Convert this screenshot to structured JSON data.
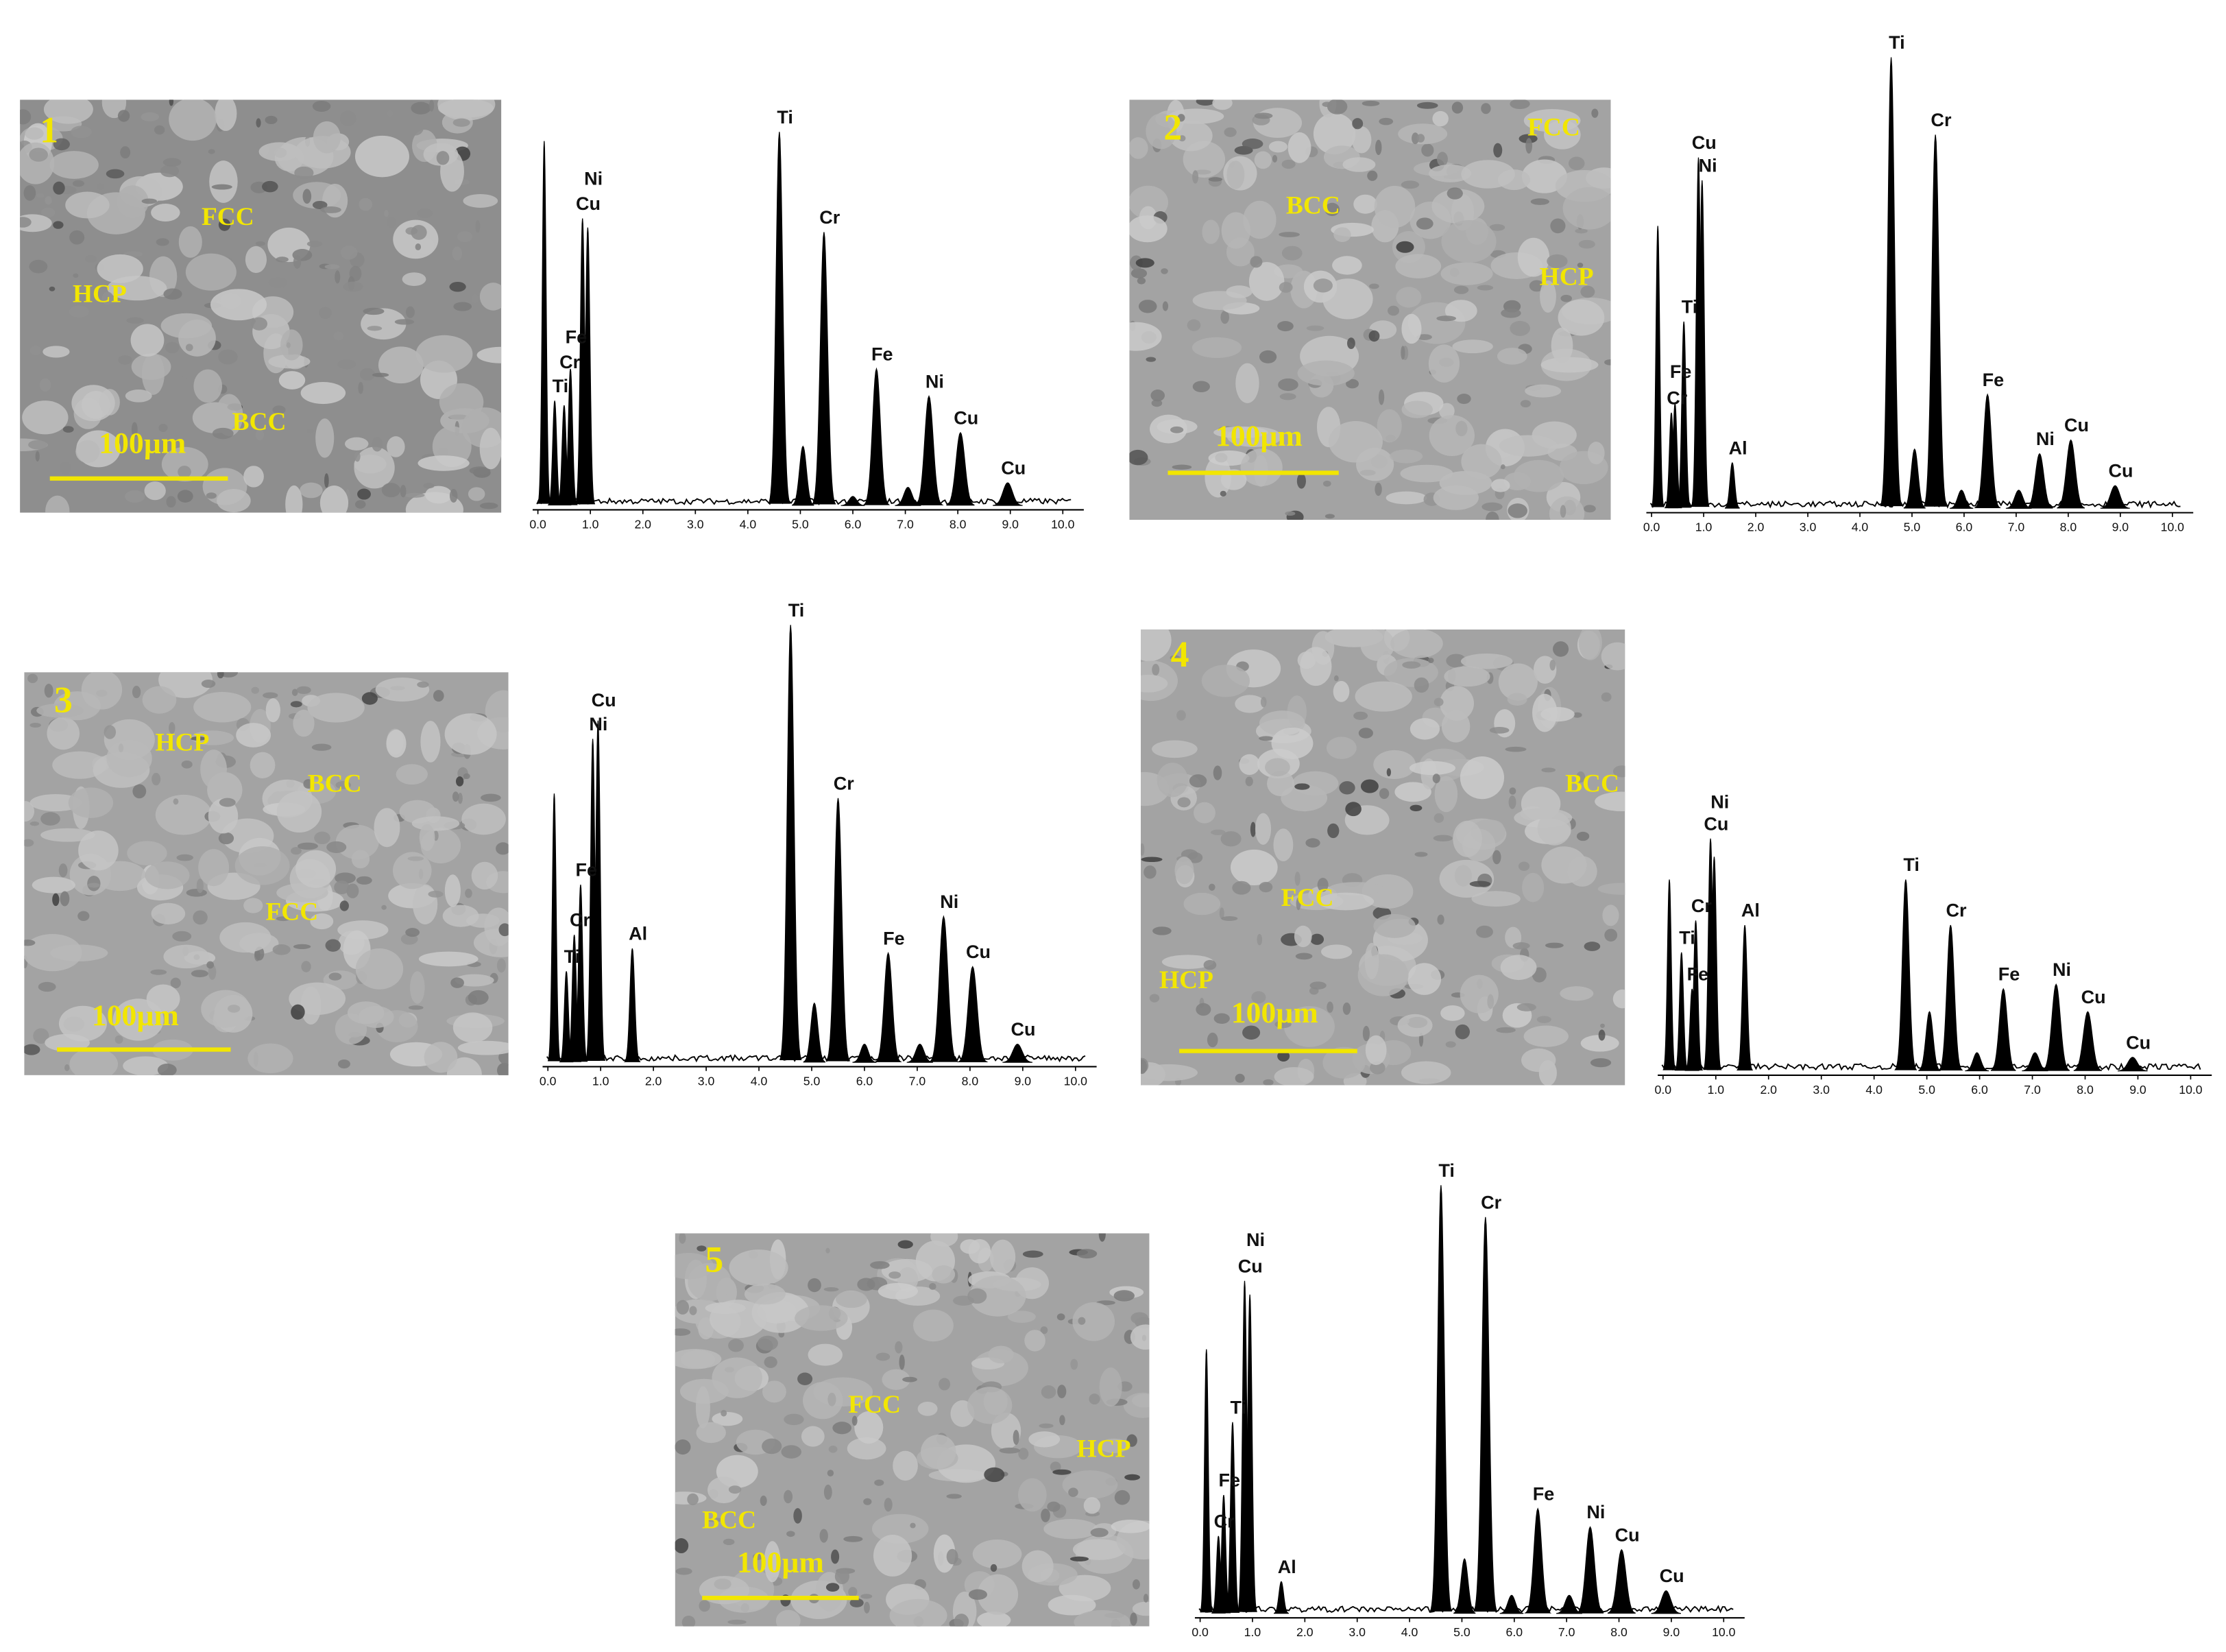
{
  "panels": [
    {
      "number": "1",
      "phases": [
        "FCC",
        "HCP",
        "BCC"
      ],
      "scale_bar": "100µm",
      "spectrum": {
        "type": "spectrum",
        "xlim": [
          -0.1,
          10.4
        ],
        "ylim": [
          0,
          100
        ],
        "xticks": [
          {
            "value": 0,
            "label": "0.0"
          },
          {
            "value": 1,
            "label": "1.0"
          },
          {
            "value": 2,
            "label": "2.0"
          },
          {
            "value": 3,
            "label": "3.0"
          },
          {
            "value": 4,
            "label": "4.0"
          },
          {
            "value": 5,
            "label": "5.0"
          },
          {
            "value": 6,
            "label": "6.0"
          },
          {
            "value": 7,
            "label": "7.0"
          },
          {
            "value": 8,
            "label": "8.0"
          },
          {
            "value": 9,
            "label": "9.0"
          },
          {
            "value": 10,
            "label": "10.0"
          }
        ],
        "peaks": [
          {
            "x": 0.12,
            "height": 80,
            "label": null
          },
          {
            "x": 0.32,
            "height": 23,
            "label": "Ti"
          },
          {
            "x": 0.5,
            "height": 22,
            "label": "Cr"
          },
          {
            "x": 0.62,
            "height": 30,
            "label": "Fe"
          },
          {
            "x": 0.85,
            "height": 63,
            "label": "Cu"
          },
          {
            "x": 0.95,
            "height": 61,
            "label": "Ni"
          },
          {
            "x": 4.6,
            "height": 82,
            "label": "Ti"
          },
          {
            "x": 5.05,
            "height": 13,
            "label": null
          },
          {
            "x": 5.45,
            "height": 60,
            "label": "Cr"
          },
          {
            "x": 6.0,
            "height": 2,
            "label": null
          },
          {
            "x": 6.45,
            "height": 30,
            "label": "Fe"
          },
          {
            "x": 7.05,
            "height": 4,
            "label": null
          },
          {
            "x": 7.45,
            "height": 24,
            "label": "Ni"
          },
          {
            "x": 8.05,
            "height": 16,
            "label": "Cu"
          },
          {
            "x": 8.95,
            "height": 5,
            "label": "Cu"
          }
        ]
      }
    },
    {
      "number": "2",
      "phases": [
        "FCC",
        "BCC",
        "HCP"
      ],
      "scale_bar": "100µm",
      "spectrum": {
        "type": "spectrum",
        "xlim": [
          -0.1,
          10.4
        ],
        "ylim": [
          0,
          100
        ],
        "xticks": [
          {
            "value": 0,
            "label": "0.0"
          },
          {
            "value": 1,
            "label": "1.0"
          },
          {
            "value": 2,
            "label": "2.0"
          },
          {
            "value": 3,
            "label": "3.0"
          },
          {
            "value": 4,
            "label": "4.0"
          },
          {
            "value": 5,
            "label": "5.0"
          },
          {
            "value": 6,
            "label": "6.0"
          },
          {
            "value": 7,
            "label": "7.0"
          },
          {
            "value": 8,
            "label": "8.0"
          },
          {
            "value": 9,
            "label": "9.0"
          },
          {
            "value": 10,
            "label": "10.0"
          }
        ],
        "peaks": [
          {
            "x": 0.12,
            "height": 62,
            "label": null
          },
          {
            "x": 0.38,
            "height": 21,
            "label": "Cr"
          },
          {
            "x": 0.45,
            "height": 23,
            "label": "Fe"
          },
          {
            "x": 0.62,
            "height": 41,
            "label": "Ti"
          },
          {
            "x": 0.9,
            "height": 77,
            "label": "Cu"
          },
          {
            "x": 0.97,
            "height": 72,
            "label": "Ni"
          },
          {
            "x": 1.55,
            "height": 10,
            "label": "Al"
          },
          {
            "x": 4.6,
            "height": 99,
            "label": "Ti"
          },
          {
            "x": 5.05,
            "height": 13,
            "label": null
          },
          {
            "x": 5.45,
            "height": 82,
            "label": "Cr"
          },
          {
            "x": 5.95,
            "height": 4,
            "label": null
          },
          {
            "x": 6.45,
            "height": 25,
            "label": "Fe"
          },
          {
            "x": 7.05,
            "height": 4,
            "label": null
          },
          {
            "x": 7.45,
            "height": 12,
            "label": "Ni"
          },
          {
            "x": 8.05,
            "height": 15,
            "label": "Cu"
          },
          {
            "x": 8.9,
            "height": 5,
            "label": "Cu"
          }
        ]
      }
    },
    {
      "number": "3",
      "phases": [
        "HCP",
        "BCC",
        "FCC"
      ],
      "scale_bar": "100µm",
      "spectrum": {
        "type": "spectrum",
        "xlim": [
          -0.1,
          10.4
        ],
        "ylim": [
          0,
          100
        ],
        "xticks": [
          {
            "value": 0,
            "label": "0.0"
          },
          {
            "value": 1,
            "label": "1.0"
          },
          {
            "value": 2,
            "label": "2.0"
          },
          {
            "value": 3,
            "label": "3.0"
          },
          {
            "value": 4,
            "label": "4.0"
          },
          {
            "value": 5,
            "label": "5.0"
          },
          {
            "value": 6,
            "label": "6.0"
          },
          {
            "value": 7,
            "label": "7.0"
          },
          {
            "value": 8,
            "label": "8.0"
          },
          {
            "value": 9,
            "label": "9.0"
          },
          {
            "value": 10,
            "label": "10.0"
          }
        ],
        "peaks": [
          {
            "x": 0.12,
            "height": 59,
            "label": null
          },
          {
            "x": 0.35,
            "height": 20,
            "label": "Ti"
          },
          {
            "x": 0.5,
            "height": 28,
            "label": "Cr"
          },
          {
            "x": 0.62,
            "height": 39,
            "label": "Fe"
          },
          {
            "x": 0.85,
            "height": 71,
            "label": "Ni"
          },
          {
            "x": 0.95,
            "height": 75,
            "label": "Cu"
          },
          {
            "x": 1.6,
            "height": 25,
            "label": "Al"
          },
          {
            "x": 4.6,
            "height": 96,
            "label": "Ti"
          },
          {
            "x": 5.05,
            "height": 13,
            "label": null
          },
          {
            "x": 5.5,
            "height": 58,
            "label": "Cr"
          },
          {
            "x": 6.0,
            "height": 4,
            "label": null
          },
          {
            "x": 6.45,
            "height": 24,
            "label": "Fe"
          },
          {
            "x": 7.05,
            "height": 4,
            "label": null
          },
          {
            "x": 7.5,
            "height": 32,
            "label": "Ni"
          },
          {
            "x": 8.05,
            "height": 21,
            "label": "Cu"
          },
          {
            "x": 8.9,
            "height": 4,
            "label": "Cu"
          }
        ]
      }
    },
    {
      "number": "4",
      "phases": [
        "BCC",
        "FCC",
        "HCP"
      ],
      "scale_bar": "100µm",
      "spectrum": {
        "type": "spectrum",
        "xlim": [
          -0.1,
          10.4
        ],
        "ylim": [
          0,
          100
        ],
        "xticks": [
          {
            "value": 0,
            "label": "0.0"
          },
          {
            "value": 1,
            "label": "1.0"
          },
          {
            "value": 2,
            "label": "2.0"
          },
          {
            "value": 3,
            "label": "3.0"
          },
          {
            "value": 4,
            "label": "4.0"
          },
          {
            "value": 5,
            "label": "5.0"
          },
          {
            "value": 6,
            "label": "6.0"
          },
          {
            "value": 7,
            "label": "7.0"
          },
          {
            "value": 8,
            "label": "8.0"
          },
          {
            "value": 9,
            "label": "9.0"
          },
          {
            "value": 10,
            "label": "10.0"
          }
        ],
        "peaks": [
          {
            "x": 0.12,
            "height": 42,
            "label": null
          },
          {
            "x": 0.35,
            "height": 26,
            "label": "Ti"
          },
          {
            "x": 0.55,
            "height": 18,
            "label": "Fe"
          },
          {
            "x": 0.62,
            "height": 33,
            "label": "Cr"
          },
          {
            "x": 0.9,
            "height": 51,
            "label": "Cu"
          },
          {
            "x": 0.97,
            "height": 47,
            "label": "Ni"
          },
          {
            "x": 1.55,
            "height": 32,
            "label": "Al"
          },
          {
            "x": 4.6,
            "height": 42,
            "label": "Ti"
          },
          {
            "x": 5.05,
            "height": 13,
            "label": null
          },
          {
            "x": 5.45,
            "height": 32,
            "label": "Cr"
          },
          {
            "x": 5.95,
            "height": 4,
            "label": null
          },
          {
            "x": 6.45,
            "height": 18,
            "label": "Fe"
          },
          {
            "x": 7.05,
            "height": 4,
            "label": null
          },
          {
            "x": 7.45,
            "height": 19,
            "label": "Ni"
          },
          {
            "x": 8.05,
            "height": 13,
            "label": "Cu"
          },
          {
            "x": 8.9,
            "height": 3,
            "label": "Cu"
          }
        ]
      }
    },
    {
      "number": "5",
      "phases": [
        "FCC",
        "HCP",
        "BCC"
      ],
      "scale_bar": "100µm",
      "spectrum": {
        "type": "spectrum",
        "xlim": [
          -0.1,
          10.4
        ],
        "ylim": [
          0,
          100
        ],
        "xticks": [
          {
            "value": 0,
            "label": "0.0"
          },
          {
            "value": 1,
            "label": "1.0"
          },
          {
            "value": 2,
            "label": "2.0"
          },
          {
            "value": 3,
            "label": "3.0"
          },
          {
            "value": 4,
            "label": "4.0"
          },
          {
            "value": 5,
            "label": "5.0"
          },
          {
            "value": 6,
            "label": "6.0"
          },
          {
            "value": 7,
            "label": "7.0"
          },
          {
            "value": 8,
            "label": "8.0"
          },
          {
            "value": 9,
            "label": "9.0"
          },
          {
            "value": 10,
            "label": "10.0"
          }
        ],
        "peaks": [
          {
            "x": 0.12,
            "height": 58,
            "label": null
          },
          {
            "x": 0.35,
            "height": 17,
            "label": "Cr"
          },
          {
            "x": 0.45,
            "height": 26,
            "label": "Fe"
          },
          {
            "x": 0.62,
            "height": 42,
            "label": "Ti"
          },
          {
            "x": 0.85,
            "height": 73,
            "label": "Cu"
          },
          {
            "x": 0.95,
            "height": 70,
            "label": "Ni"
          },
          {
            "x": 1.55,
            "height": 7,
            "label": "Al"
          },
          {
            "x": 4.6,
            "height": 94,
            "label": "Ti"
          },
          {
            "x": 5.05,
            "height": 12,
            "label": null
          },
          {
            "x": 5.45,
            "height": 87,
            "label": "Cr"
          },
          {
            "x": 5.95,
            "height": 4,
            "label": null
          },
          {
            "x": 6.45,
            "height": 23,
            "label": "Fe"
          },
          {
            "x": 7.05,
            "height": 4,
            "label": null
          },
          {
            "x": 7.45,
            "height": 19,
            "label": "Ni"
          },
          {
            "x": 8.05,
            "height": 14,
            "label": "Cu"
          },
          {
            "x": 8.9,
            "height": 5,
            "label": "Cu"
          }
        ]
      }
    }
  ]
}
